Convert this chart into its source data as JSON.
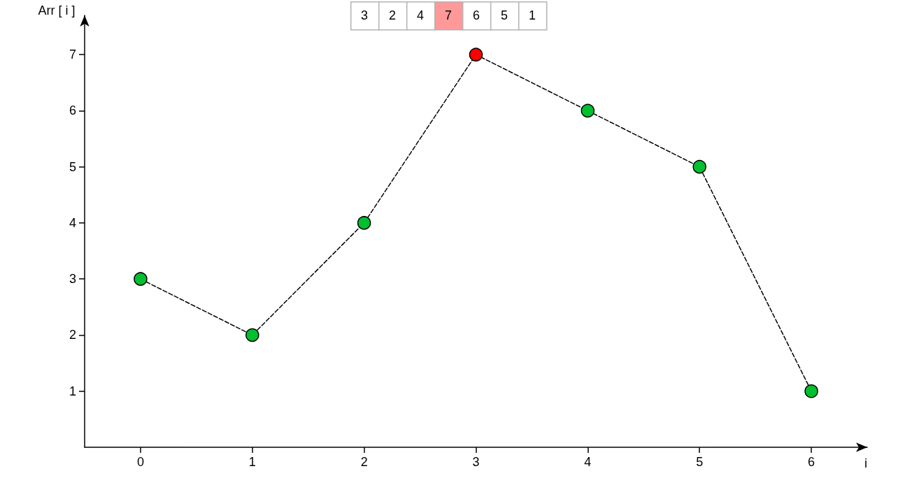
{
  "chart_data": {
    "type": "line",
    "xlabel": "i",
    "ylabel": "Arr [ i ]",
    "x": [
      0,
      1,
      2,
      3,
      4,
      5,
      6
    ],
    "series": [
      {
        "color": "#000000",
        "values": [
          3,
          2,
          4,
          7,
          6,
          5,
          1
        ],
        "colors": [
          "#00c030",
          "#00c030",
          "#00c030",
          "#ff0000",
          "#00c030",
          "#00c030",
          "#00c030"
        ]
      }
    ],
    "xlim": [
      -0.5,
      6.5
    ],
    "xticks": [
      0,
      1,
      2,
      3,
      4,
      5,
      6
    ],
    "ylim": [
      0,
      7.7
    ],
    "yticks": [
      1,
      2,
      3,
      4,
      5,
      6,
      7
    ],
    "marker": "circle",
    "line_style": "dashed",
    "annotations": [
      "3",
      "2",
      "4",
      "7",
      "6",
      "5",
      "1"
    ]
  }
}
